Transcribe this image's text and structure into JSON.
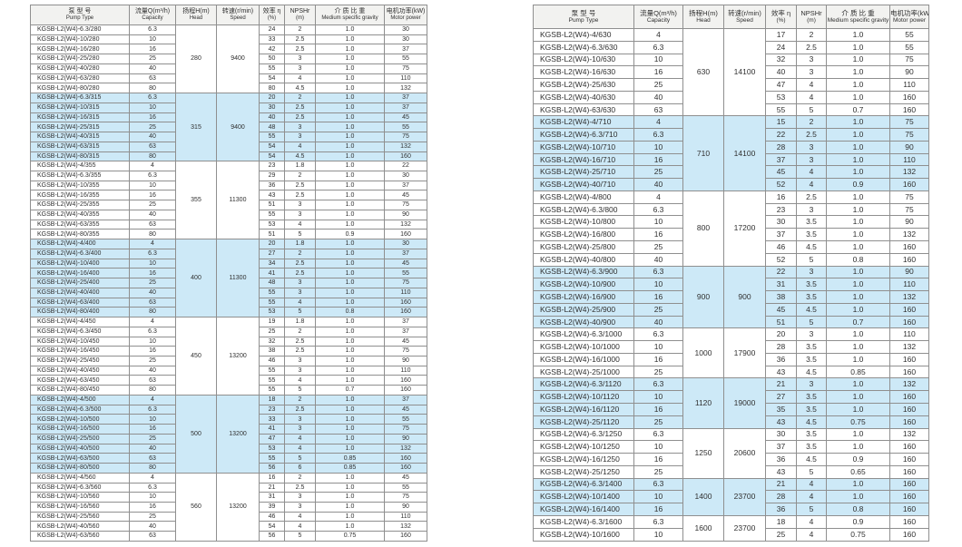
{
  "colors": {
    "row_highlight": "#cde9f7",
    "header_bg": "#f2f2f0",
    "border": "#8f8f8f"
  },
  "row_fields": [
    "model",
    "capacity",
    "efficiency",
    "npshr",
    "gravity",
    "power"
  ],
  "columns": [
    {
      "key": "model",
      "zh": "泵 型 号",
      "en": "Pump Type"
    },
    {
      "key": "capacity",
      "zh": "流量Q(m³/h)",
      "en": "Capacity"
    },
    {
      "key": "head",
      "zh": "扬程H(m)",
      "en": "Head"
    },
    {
      "key": "speed",
      "zh": "转速(r/min)",
      "en": "Speed"
    },
    {
      "key": "efficiency",
      "zh": "效率 η",
      "en": "(%)"
    },
    {
      "key": "npshr",
      "zh": "NPSHr",
      "en": "(m)"
    },
    {
      "key": "gravity",
      "zh": "介 质 比 重",
      "en": "Medium specific gravity"
    },
    {
      "key": "power",
      "zh": "电机功率(kW)",
      "en": "Motor power"
    }
  ],
  "tables": [
    {
      "groups": [
        {
          "head": "280",
          "speed": "9400",
          "shaded": false,
          "rows": [
            [
              "KGSB-L2(W4)-6.3/280",
              "6.3",
              "24",
              "2",
              "1.0",
              "30"
            ],
            [
              "KGSB-L2(W4)-10/280",
              "10",
              "33",
              "2.5",
              "1.0",
              "30"
            ],
            [
              "KGSB-L2(W4)-16/280",
              "16",
              "42",
              "2.5",
              "1.0",
              "37"
            ],
            [
              "KGSB-L2(W4)-25/280",
              "25",
              "50",
              "3",
              "1.0",
              "55"
            ],
            [
              "KGSB-L2(W4)-40/280",
              "40",
              "55",
              "3",
              "1.0",
              "75"
            ],
            [
              "KGSB-L2(W4)-63/280",
              "63",
              "54",
              "4",
              "1.0",
              "110"
            ],
            [
              "KGSB-L2(W4)-80/280",
              "80",
              "80",
              "4.5",
              "1.0",
              "132"
            ]
          ]
        },
        {
          "head": "315",
          "speed": "9400",
          "shaded": true,
          "rows": [
            [
              "KGSB-L2(W4)-6.3/315",
              "6.3",
              "20",
              "2",
              "1.0",
              "37"
            ],
            [
              "KGSB-L2(W4)-10/315",
              "10",
              "30",
              "2.5",
              "1.0",
              "37"
            ],
            [
              "KGSB-L2(W4)-16/315",
              "16",
              "40",
              "2.5",
              "1.0",
              "45"
            ],
            [
              "KGSB-L2(W4)-25/315",
              "25",
              "48",
              "3",
              "1.0",
              "55"
            ],
            [
              "KGSB-L2(W4)-40/315",
              "40",
              "55",
              "3",
              "1.0",
              "75"
            ],
            [
              "KGSB-L2(W4)-63/315",
              "63",
              "54",
              "4",
              "1.0",
              "132"
            ],
            [
              "KGSB-L2(W4)-80/315",
              "80",
              "54",
              "4.5",
              "1.0",
              "160"
            ]
          ]
        },
        {
          "head": "355",
          "speed": "11300",
          "shaded": false,
          "rows": [
            [
              "KGSB-L2(W4)-4/355",
              "4",
              "23",
              "1.8",
              "1.0",
              "22"
            ],
            [
              "KGSB-L2(W4)-6.3/355",
              "6.3",
              "29",
              "2",
              "1.0",
              "30"
            ],
            [
              "KGSB-L2(W4)-10/355",
              "10",
              "36",
              "2.5",
              "1.0",
              "37"
            ],
            [
              "KGSB-L2(W4)-16/355",
              "16",
              "43",
              "2.5",
              "1.0",
              "45"
            ],
            [
              "KGSB-L2(W4)-25/355",
              "25",
              "51",
              "3",
              "1.0",
              "75"
            ],
            [
              "KGSB-L2(W4)-40/355",
              "40",
              "55",
              "3",
              "1.0",
              "90"
            ],
            [
              "KGSB-L2(W4)-63/355",
              "63",
              "53",
              "4",
              "1.0",
              "132"
            ],
            [
              "KGSB-L2(W4)-80/355",
              "80",
              "51",
              "5",
              "0.9",
              "160"
            ]
          ]
        },
        {
          "head": "400",
          "speed": "11300",
          "shaded": true,
          "rows": [
            [
              "KGSB-L2(W4)-4/400",
              "4",
              "20",
              "1.8",
              "1.0",
              "30"
            ],
            [
              "KGSB-L2(W4)-6.3/400",
              "6.3",
              "27",
              "2",
              "1.0",
              "37"
            ],
            [
              "KGSB-L2(W4)-10/400",
              "10",
              "34",
              "2.5",
              "1.0",
              "45"
            ],
            [
              "KGSB-L2(W4)-16/400",
              "16",
              "41",
              "2.5",
              "1.0",
              "55"
            ],
            [
              "KGSB-L2(W4)-25/400",
              "25",
              "48",
              "3",
              "1.0",
              "75"
            ],
            [
              "KGSB-L2(W4)-40/400",
              "40",
              "55",
              "3",
              "1.0",
              "110"
            ],
            [
              "KGSB-L2(W4)-63/400",
              "63",
              "55",
              "4",
              "1.0",
              "160"
            ],
            [
              "KGSB-L2(W4)-80/400",
              "80",
              "53",
              "5",
              "0.8",
              "160"
            ]
          ]
        },
        {
          "head": "450",
          "speed": "13200",
          "shaded": false,
          "rows": [
            [
              "KGSB-L2(W4)-4/450",
              "4",
              "19",
              "1.8",
              "1.0",
              "37"
            ],
            [
              "KGSB-L2(W4)-6.3/450",
              "6.3",
              "25",
              "2",
              "1.0",
              "37"
            ],
            [
              "KGSB-L2(W4)-10/450",
              "10",
              "32",
              "2.5",
              "1.0",
              "45"
            ],
            [
              "KGSB-L2(W4)-16/450",
              "16",
              "38",
              "2.5",
              "1.0",
              "75"
            ],
            [
              "KGSB-L2(W4)-25/450",
              "25",
              "46",
              "3",
              "1.0",
              "90"
            ],
            [
              "KGSB-L2(W4)-40/450",
              "40",
              "55",
              "3",
              "1.0",
              "110"
            ],
            [
              "KGSB-L2(W4)-63/450",
              "63",
              "55",
              "4",
              "1.0",
              "160"
            ],
            [
              "KGSB-L2(W4)-80/450",
              "80",
              "55",
              "5",
              "0.7",
              "160"
            ]
          ]
        },
        {
          "head": "500",
          "speed": "13200",
          "shaded": true,
          "rows": [
            [
              "KGSB-L2(W4)-4/500",
              "4",
              "18",
              "2",
              "1.0",
              "37"
            ],
            [
              "KGSB-L2(W4)-6.3/500",
              "6.3",
              "23",
              "2.5",
              "1.0",
              "45"
            ],
            [
              "KGSB-L2(W4)-10/500",
              "10",
              "33",
              "3",
              "1.0",
              "55"
            ],
            [
              "KGSB-L2(W4)-16/500",
              "16",
              "41",
              "3",
              "1.0",
              "75"
            ],
            [
              "KGSB-L2(W4)-25/500",
              "25",
              "47",
              "4",
              "1.0",
              "90"
            ],
            [
              "KGSB-L2(W4)-40/500",
              "40",
              "53",
              "4",
              "1.0",
              "132"
            ],
            [
              "KGSB-L2(W4)-63/500",
              "63",
              "55",
              "5",
              "0.85",
              "160"
            ],
            [
              "KGSB-L2(W4)-80/500",
              "80",
              "56",
              "6",
              "0.85",
              "160"
            ]
          ]
        },
        {
          "head": "560",
          "speed": "13200",
          "shaded": false,
          "rows": [
            [
              "KGSB-L2(W4)-4/560",
              "4",
              "16",
              "2",
              "1.0",
              "45"
            ],
            [
              "KGSB-L2(W4)-6.3/560",
              "6.3",
              "21",
              "2.5",
              "1.0",
              "55"
            ],
            [
              "KGSB-L2(W4)-10/560",
              "10",
              "31",
              "3",
              "1.0",
              "75"
            ],
            [
              "KGSB-L2(W4)-16/560",
              "16",
              "39",
              "3",
              "1.0",
              "90"
            ],
            [
              "KGSB-L2(W4)-25/560",
              "25",
              "46",
              "4",
              "1.0",
              "110"
            ],
            [
              "KGSB-L2(W4)-40/560",
              "40",
              "54",
              "4",
              "1.0",
              "132"
            ],
            [
              "KGSB-L2(W4)-63/560",
              "63",
              "56",
              "5",
              "0.75",
              "160"
            ]
          ]
        }
      ]
    },
    {
      "groups": [
        {
          "head": "630",
          "speed": "14100",
          "shaded": false,
          "rows": [
            [
              "KGSB-L2(W4)-4/630",
              "4",
              "17",
              "2",
              "1.0",
              "55"
            ],
            [
              "KGSB-L2(W4)-6.3/630",
              "6.3",
              "24",
              "2.5",
              "1.0",
              "55"
            ],
            [
              "KGSB-L2(W4)-10/630",
              "10",
              "32",
              "3",
              "1.0",
              "75"
            ],
            [
              "KGSB-L2(W4)-16/630",
              "16",
              "40",
              "3",
              "1.0",
              "90"
            ],
            [
              "KGSB-L2(W4)-25/630",
              "25",
              "47",
              "4",
              "1.0",
              "110"
            ],
            [
              "KGSB-L2(W4)-40/630",
              "40",
              "53",
              "4",
              "1.0",
              "160"
            ],
            [
              "KGSB-L2(W4)-63/630",
              "63",
              "55",
              "5",
              "0.7",
              "160"
            ]
          ]
        },
        {
          "head": "710",
          "speed": "14100",
          "shaded": true,
          "rows": [
            [
              "KGSB-L2(W4)-4/710",
              "4",
              "15",
              "2",
              "1.0",
              "75"
            ],
            [
              "KGSB-L2(W4)-6.3/710",
              "6.3",
              "22",
              "2.5",
              "1.0",
              "75"
            ],
            [
              "KGSB-L2(W4)-10/710",
              "10",
              "28",
              "3",
              "1.0",
              "90"
            ],
            [
              "KGSB-L2(W4)-16/710",
              "16",
              "37",
              "3",
              "1.0",
              "110"
            ],
            [
              "KGSB-L2(W4)-25/710",
              "25",
              "45",
              "4",
              "1.0",
              "132"
            ],
            [
              "KGSB-L2(W4)-40/710",
              "40",
              "52",
              "4",
              "0.9",
              "160"
            ]
          ]
        },
        {
          "head": "800",
          "speed": "17200",
          "shaded": false,
          "rows": [
            [
              "KGSB-L2(W4)-4/800",
              "4",
              "16",
              "2.5",
              "1.0",
              "75"
            ],
            [
              "KGSB-L2(W4)-6.3/800",
              "6.3",
              "23",
              "3",
              "1.0",
              "75"
            ],
            [
              "KGSB-L2(W4)-10/800",
              "10",
              "30",
              "3.5",
              "1.0",
              "90"
            ],
            [
              "KGSB-L2(W4)-16/800",
              "16",
              "37",
              "3.5",
              "1.0",
              "132"
            ],
            [
              "KGSB-L2(W4)-25/800",
              "25",
              "46",
              "4.5",
              "1.0",
              "160"
            ],
            [
              "KGSB-L2(W4)-40/800",
              "40",
              "52",
              "5",
              "0.8",
              "160"
            ]
          ]
        },
        {
          "head": "900",
          "speed": "900",
          "shaded": true,
          "rows": [
            [
              "KGSB-L2(W4)-6.3/900",
              "6.3",
              "22",
              "3",
              "1.0",
              "90"
            ],
            [
              "KGSB-L2(W4)-10/900",
              "10",
              "31",
              "3.5",
              "1.0",
              "110"
            ],
            [
              "KGSB-L2(W4)-16/900",
              "16",
              "38",
              "3.5",
              "1.0",
              "132"
            ],
            [
              "KGSB-L2(W4)-25/900",
              "25",
              "45",
              "4.5",
              "1.0",
              "160"
            ],
            [
              "KGSB-L2(W4)-40/900",
              "40",
              "51",
              "5",
              "0.7",
              "160"
            ]
          ]
        },
        {
          "head": "1000",
          "speed": "17900",
          "shaded": false,
          "rows": [
            [
              "KGSB-L2(W4)-6.3/1000",
              "6.3",
              "20",
              "3",
              "1.0",
              "110"
            ],
            [
              "KGSB-L2(W4)-10/1000",
              "10",
              "28",
              "3.5",
              "1.0",
              "132"
            ],
            [
              "KGSB-L2(W4)-16/1000",
              "16",
              "36",
              "3.5",
              "1.0",
              "160"
            ],
            [
              "KGSB-L2(W4)-25/1000",
              "25",
              "43",
              "4.5",
              "0.85",
              "160"
            ]
          ]
        },
        {
          "head": "1120",
          "speed": "19000",
          "shaded": true,
          "rows": [
            [
              "KGSB-L2(W4)-6.3/1120",
              "6.3",
              "21",
              "3",
              "1.0",
              "132"
            ],
            [
              "KGSB-L2(W4)-10/1120",
              "10",
              "27",
              "3.5",
              "1.0",
              "160"
            ],
            [
              "KGSB-L2(W4)-16/1120",
              "16",
              "35",
              "3.5",
              "1.0",
              "160"
            ],
            [
              "KGSB-L2(W4)-25/1120",
              "25",
              "43",
              "4.5",
              "0.75",
              "160"
            ]
          ]
        },
        {
          "head": "1250",
          "speed": "20600",
          "shaded": false,
          "rows": [
            [
              "KGSB-L2(W4)-6.3/1250",
              "6.3",
              "30",
              "3.5",
              "1.0",
              "132"
            ],
            [
              "KGSB-L2(W4)-10/1250",
              "10",
              "37",
              "3.5",
              "1.0",
              "160"
            ],
            [
              "KGSB-L2(W4)-16/1250",
              "16",
              "36",
              "4.5",
              "0.9",
              "160"
            ],
            [
              "KGSB-L2(W4)-25/1250",
              "25",
              "43",
              "5",
              "0.65",
              "160"
            ]
          ]
        },
        {
          "head": "1400",
          "speed": "23700",
          "shaded": true,
          "rows": [
            [
              "KGSB-L2(W4)-6.3/1400",
              "6.3",
              "21",
              "4",
              "1.0",
              "160"
            ],
            [
              "KGSB-L2(W4)-10/1400",
              "10",
              "28",
              "4",
              "1.0",
              "160"
            ],
            [
              "KGSB-L2(W4)-16/1400",
              "16",
              "36",
              "5",
              "0.8",
              "160"
            ]
          ]
        },
        {
          "head": "1600",
          "speed": "23700",
          "shaded": false,
          "rows": [
            [
              "KGSB-L2(W4)-6.3/1600",
              "6.3",
              "18",
              "4",
              "0.9",
              "160"
            ],
            [
              "KGSB-L2(W4)-10/1600",
              "10",
              "25",
              "4",
              "0.75",
              "160"
            ]
          ]
        }
      ]
    }
  ]
}
